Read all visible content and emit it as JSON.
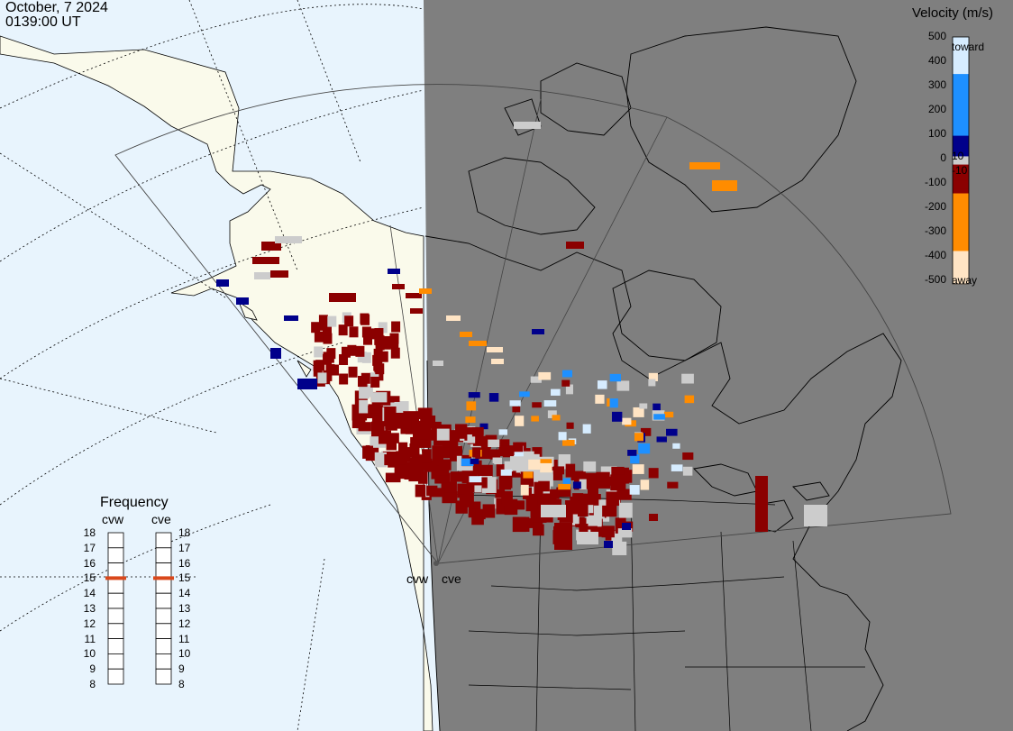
{
  "header": {
    "date": "October, 7 2024",
    "time": "0139:00 UT"
  },
  "colorbar": {
    "title": "Velocity (m/s)",
    "top_label": "toward",
    "bottom_label": "away",
    "ticks": [
      "500",
      "400",
      "300",
      "200",
      "100",
      "0",
      "-100",
      "-200",
      "-300",
      "-400",
      "-500"
    ],
    "inner_labels": [
      "10",
      "-10"
    ],
    "colors": {
      "toward_light": "#d6ecff",
      "toward_mid": "#1e90ff",
      "toward_dark": "#00008b",
      "away_dark": "#8b0000",
      "away_mid": "#ff8c00",
      "away_light": "#ffe4c4"
    }
  },
  "frequency": {
    "title": "Frequency",
    "radars": [
      "cvw",
      "cve"
    ],
    "scale": [
      "18",
      "17",
      "16",
      "15",
      "14",
      "13",
      "12",
      "11",
      "10",
      "9",
      "8"
    ],
    "selected": 15,
    "marker_color": "#d9481b"
  },
  "radar_sites": [
    "cvw",
    "cve"
  ],
  "map": {
    "night_color": "#7f7f7f",
    "ocean_color": "#e8f4fd",
    "land_color": "#fafaeb",
    "ground_scatter_color": "#cccccc"
  }
}
